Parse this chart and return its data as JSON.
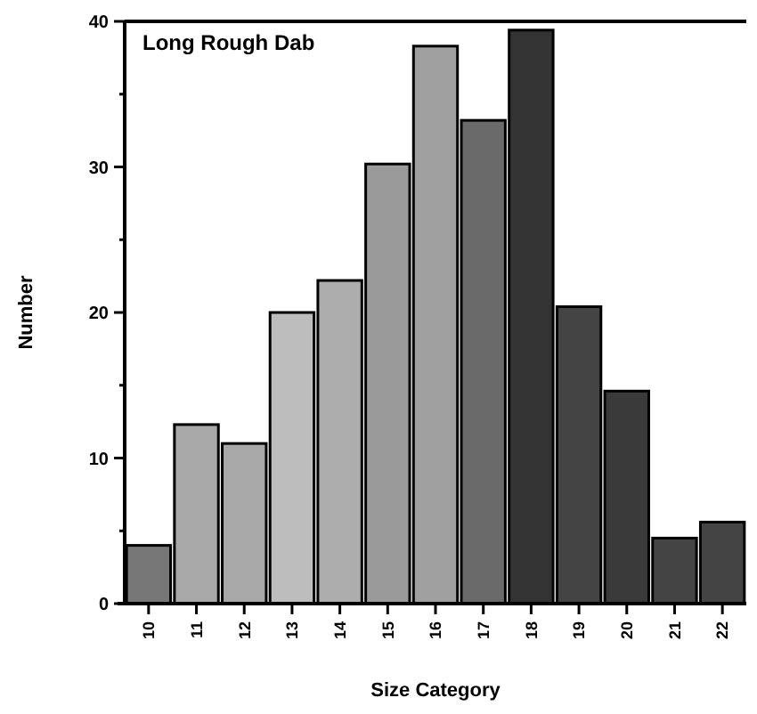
{
  "chart_data": {
    "type": "bar",
    "title": "Long Rough Dab",
    "xlabel": "Size Category",
    "ylabel": "Number",
    "categories": [
      "10",
      "11",
      "12",
      "13",
      "14",
      "15",
      "16",
      "17",
      "18",
      "19",
      "20",
      "21",
      "22"
    ],
    "values": [
      4,
      12.3,
      11,
      20,
      22.2,
      30.2,
      38.3,
      33.2,
      39.4,
      20.4,
      14.6,
      4.5,
      5.6
    ],
    "colors": [
      "#777777",
      "#a8a8a8",
      "#a8a8a8",
      "#bdbdbd",
      "#adadad",
      "#9a9a9a",
      "#a0a0a0",
      "#6a6a6a",
      "#333333",
      "#444444",
      "#3a3a3a",
      "#444444",
      "#444444"
    ],
    "ylim": [
      0,
      40
    ],
    "yticks": [
      0,
      {
        "value": 5,
        "label": null
      },
      10,
      {
        "value": 15,
        "label": null
      },
      20,
      {
        "value": 25,
        "label": null
      },
      30,
      {
        "value": 35,
        "label": null
      },
      40
    ],
    "grid": false
  }
}
